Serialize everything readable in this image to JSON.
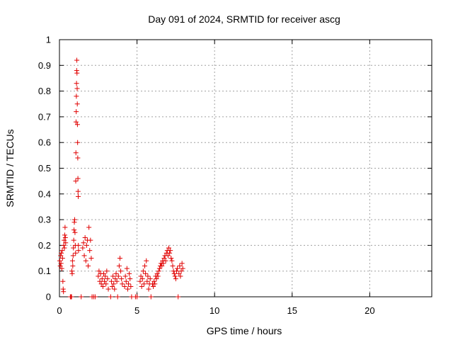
{
  "chart_data": {
    "type": "scatter",
    "title": "Day 091 of 2024, SRMTID for receiver ascg",
    "xlabel": "GPS time / hours",
    "ylabel": "SRMTID / TECUs",
    "xlim": [
      0,
      24
    ],
    "ylim": [
      0,
      1
    ],
    "xticks": [
      0,
      5,
      10,
      15,
      20
    ],
    "yticks": [
      0,
      0.1,
      0.2,
      0.3,
      0.4,
      0.5,
      0.6,
      0.7,
      0.8,
      0.9,
      1
    ],
    "ytick_labels": [
      "0",
      "0.1",
      "0.2",
      "0.3",
      "0.4",
      "0.5",
      "0.6",
      "0.7",
      "0.8",
      "0.9",
      "1"
    ],
    "grid": true,
    "marker": "plus",
    "color": "#e00000",
    "series": [
      {
        "name": "SRMTID",
        "points": [
          [
            0.02,
            0.14
          ],
          [
            0.05,
            0.12
          ],
          [
            0.08,
            0.16
          ],
          [
            0.1,
            0.13
          ],
          [
            0.12,
            0.17
          ],
          [
            0.15,
            0.11
          ],
          [
            0.18,
            0.18
          ],
          [
            0.2,
            0.15
          ],
          [
            0.22,
            0.06
          ],
          [
            0.24,
            0.03
          ],
          [
            0.26,
            0.02
          ],
          [
            0.28,
            0.2
          ],
          [
            0.3,
            0.22
          ],
          [
            0.32,
            0.19
          ],
          [
            0.34,
            0.24
          ],
          [
            0.36,
            0.27
          ],
          [
            0.38,
            0.23
          ],
          [
            0.4,
            0.21
          ],
          [
            0.7,
            0.0
          ],
          [
            0.75,
            0.0
          ],
          [
            0.78,
            0.0
          ],
          [
            0.8,
            0.1
          ],
          [
            0.82,
            0.09
          ],
          [
            0.84,
            0.14
          ],
          [
            0.86,
            0.12
          ],
          [
            0.88,
            0.16
          ],
          [
            0.9,
            0.19
          ],
          [
            0.92,
            0.22
          ],
          [
            0.94,
            0.26
          ],
          [
            0.96,
            0.29
          ],
          [
            0.98,
            0.3
          ],
          [
            1.0,
            0.25
          ],
          [
            1.02,
            0.2
          ],
          [
            1.04,
            0.17
          ],
          [
            1.05,
            0.45
          ],
          [
            1.06,
            0.56
          ],
          [
            1.07,
            0.68
          ],
          [
            1.08,
            0.72
          ],
          [
            1.09,
            0.78
          ],
          [
            1.1,
            0.83
          ],
          [
            1.11,
            0.88
          ],
          [
            1.12,
            0.92
          ],
          [
            1.13,
            0.87
          ],
          [
            1.14,
            0.81
          ],
          [
            1.15,
            0.75
          ],
          [
            1.16,
            0.67
          ],
          [
            1.17,
            0.6
          ],
          [
            1.18,
            0.54
          ],
          [
            1.19,
            0.46
          ],
          [
            1.2,
            0.41
          ],
          [
            1.21,
            0.39
          ],
          [
            1.22,
            0.2
          ],
          [
            1.23,
            0.18
          ],
          [
            1.4,
            0.0
          ],
          [
            1.5,
            0.19
          ],
          [
            1.55,
            0.21
          ],
          [
            1.6,
            0.16
          ],
          [
            1.65,
            0.23
          ],
          [
            1.7,
            0.14
          ],
          [
            1.75,
            0.2
          ],
          [
            1.8,
            0.22
          ],
          [
            1.85,
            0.12
          ],
          [
            1.9,
            0.27
          ],
          [
            1.95,
            0.18
          ],
          [
            2.0,
            0.22
          ],
          [
            2.05,
            0.15
          ],
          [
            2.1,
            0.0
          ],
          [
            2.2,
            0.0
          ],
          [
            2.3,
            0.0
          ],
          [
            2.5,
            0.08
          ],
          [
            2.55,
            0.1
          ],
          [
            2.6,
            0.06
          ],
          [
            2.65,
            0.09
          ],
          [
            2.7,
            0.05
          ],
          [
            2.75,
            0.07
          ],
          [
            2.8,
            0.04
          ],
          [
            2.85,
            0.09
          ],
          [
            2.9,
            0.06
          ],
          [
            2.95,
            0.08
          ],
          [
            3.0,
            0.05
          ],
          [
            3.05,
            0.1
          ],
          [
            3.1,
            0.07
          ],
          [
            3.15,
            0.03
          ],
          [
            3.3,
            0.0
          ],
          [
            3.35,
            0.06
          ],
          [
            3.4,
            0.04
          ],
          [
            3.45,
            0.08
          ],
          [
            3.5,
            0.05
          ],
          [
            3.55,
            0.03
          ],
          [
            3.6,
            0.07
          ],
          [
            3.65,
            0.09
          ],
          [
            3.7,
            0.06
          ],
          [
            3.75,
            0.0
          ],
          [
            3.8,
            0.08
          ],
          [
            3.85,
            0.12
          ],
          [
            3.9,
            0.15
          ],
          [
            3.95,
            0.1
          ],
          [
            4.0,
            0.07
          ],
          [
            4.05,
            0.05
          ],
          [
            4.2,
            0.04
          ],
          [
            4.25,
            0.08
          ],
          [
            4.3,
            0.06
          ],
          [
            4.35,
            0.11
          ],
          [
            4.4,
            0.03
          ],
          [
            4.45,
            0.05
          ],
          [
            4.5,
            0.09
          ],
          [
            4.55,
            0.07
          ],
          [
            4.6,
            0.04
          ],
          [
            4.65,
            0.0
          ],
          [
            4.9,
            0.0
          ],
          [
            5.0,
            0.0
          ],
          [
            5.2,
            0.06
          ],
          [
            5.25,
            0.08
          ],
          [
            5.3,
            0.04
          ],
          [
            5.35,
            0.07
          ],
          [
            5.4,
            0.1
          ],
          [
            5.45,
            0.05
          ],
          [
            5.5,
            0.12
          ],
          [
            5.55,
            0.09
          ],
          [
            5.6,
            0.14
          ],
          [
            5.65,
            0.06
          ],
          [
            5.7,
            0.08
          ],
          [
            5.75,
            0.03
          ],
          [
            5.8,
            0.05
          ],
          [
            5.85,
            0.07
          ],
          [
            5.9,
            0.0
          ],
          [
            6.0,
            0.05
          ],
          [
            6.05,
            0.04
          ],
          [
            6.1,
            0.06
          ],
          [
            6.15,
            0.05
          ],
          [
            6.2,
            0.08
          ],
          [
            6.25,
            0.07
          ],
          [
            6.3,
            0.09
          ],
          [
            6.35,
            0.08
          ],
          [
            6.4,
            0.1
          ],
          [
            6.45,
            0.11
          ],
          [
            6.5,
            0.12
          ],
          [
            6.55,
            0.13
          ],
          [
            6.6,
            0.12
          ],
          [
            6.65,
            0.14
          ],
          [
            6.7,
            0.13
          ],
          [
            6.75,
            0.15
          ],
          [
            6.8,
            0.16
          ],
          [
            6.85,
            0.14
          ],
          [
            6.9,
            0.17
          ],
          [
            6.95,
            0.18
          ],
          [
            7.0,
            0.16
          ],
          [
            7.05,
            0.19
          ],
          [
            7.1,
            0.17
          ],
          [
            7.15,
            0.18
          ],
          [
            7.2,
            0.15
          ],
          [
            7.25,
            0.14
          ],
          [
            7.3,
            0.12
          ],
          [
            7.35,
            0.1
          ],
          [
            7.4,
            0.09
          ],
          [
            7.45,
            0.08
          ],
          [
            7.5,
            0.07
          ],
          [
            7.55,
            0.1
          ],
          [
            7.6,
            0.11
          ],
          [
            7.65,
            0.0
          ],
          [
            7.7,
            0.09
          ],
          [
            7.75,
            0.12
          ],
          [
            7.8,
            0.08
          ],
          [
            7.85,
            0.1
          ],
          [
            7.9,
            0.13
          ],
          [
            7.95,
            0.11
          ]
        ]
      }
    ]
  }
}
